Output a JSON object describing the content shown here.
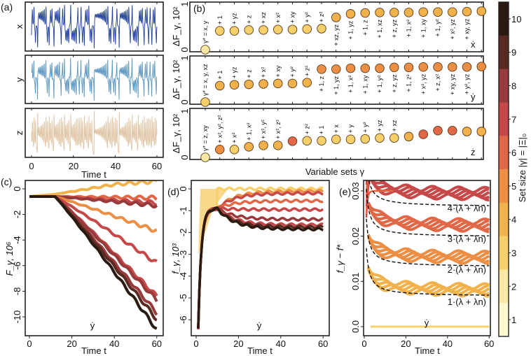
{
  "colors": {
    "set_size": {
      "1": "#fefbd0",
      "2": "#fbe8a2",
      "3": "#f8d06b",
      "4": "#f2b24b",
      "5": "#ec8f44",
      "6": "#e06846",
      "7": "#c64849",
      "8": "#973a3b",
      "9": "#5a2a22",
      "10": "#2a1a10"
    },
    "x_series": "#1f3f99",
    "y_series": "#5a95c0",
    "z_series": "#e0c5a5",
    "dashed": "#111111"
  },
  "chart_data": [
    {
      "panel": "(a)",
      "type": "line",
      "series": [
        {
          "name": "x"
        },
        {
          "name": "y"
        },
        {
          "name": "z"
        }
      ],
      "xlabel": "Time t",
      "xticks": [
        "0",
        "20",
        "40",
        "60"
      ],
      "xlim": [
        0,
        60
      ]
    },
    {
      "panel": "(b)",
      "type": "scatter",
      "xlabel": "Variable sets γ",
      "ylabel": "ΔF_γ, 10²",
      "yticks": [
        "0",
        "1"
      ],
      "ylim": [
        0,
        1
      ],
      "rows": [
        {
          "name": "ẋ",
          "labels": [
            "γ* = x, y",
            "+ 1",
            "+ yz",
            "+ z",
            "+ xz",
            "+ x²",
            "+ xy",
            "+ y²",
            "+ z²",
            "+ xz, yz",
            "+ 1, yz",
            "+ 1, z",
            "+ 1, xz",
            "+ z, yz",
            "+ 1, x²",
            "+ 1, xy",
            "+ 1, y²",
            "+ x², yz",
            "+ xy, yz",
            ""
          ],
          "values": [
            0,
            0.42,
            0.42,
            0.44,
            0.44,
            0.45,
            0.45,
            0.46,
            0.47,
            0.72,
            0.8,
            0.82,
            0.83,
            0.83,
            0.83,
            0.84,
            0.84,
            0.84,
            0.85,
            0.86
          ],
          "set_sizes": [
            2,
            3,
            3,
            3,
            3,
            3,
            3,
            3,
            3,
            4,
            4,
            4,
            4,
            4,
            4,
            4,
            4,
            4,
            4,
            4
          ]
        },
        {
          "name": "ẏ",
          "labels": [
            "γ* = x, y, xz",
            "+ 1",
            "+ yz",
            "+ z",
            "+ x²",
            "+ xy",
            "+ y²",
            "+ z²",
            "+ 1, z",
            "+ 1, yz",
            "+ 1, x²",
            "+ 1, xy",
            "+ 1, y²",
            "+ z, yz",
            "+ 1, z²",
            "+ x², yz",
            "+ z, x²",
            "+ xy, yz",
            "+ y², yz",
            ""
          ],
          "values": [
            0,
            0.38,
            0.4,
            0.41,
            0.42,
            0.43,
            0.43,
            0.45,
            0.76,
            0.76,
            0.78,
            0.78,
            0.78,
            0.8,
            0.8,
            0.81,
            0.81,
            0.81,
            0.81,
            0.82
          ],
          "set_sizes": [
            3,
            4,
            4,
            4,
            4,
            4,
            4,
            4,
            5,
            5,
            5,
            5,
            5,
            5,
            5,
            5,
            5,
            5,
            5,
            5
          ]
        },
        {
          "name": "ż",
          "labels": [
            "γ* = z, xy",
            "+ x², y², z²",
            "+ x²",
            "+ 1, x²",
            "+ x², y²",
            "+ x², z²",
            "",
            "+ z²",
            "+ 1",
            "+ x",
            "+ y",
            "+ y²",
            "+ yz",
            "+ xz",
            "",
            "",
            "",
            "",
            "",
            ""
          ],
          "values": [
            0,
            0.17,
            0.17,
            0.23,
            0.26,
            0.26,
            0.35,
            0.36,
            0.36,
            0.39,
            0.39,
            0.4,
            0.42,
            0.42,
            0.45,
            0.5,
            0.58,
            0.58,
            0.56,
            0.56
          ],
          "set_sizes": [
            2,
            5,
            3,
            4,
            4,
            4,
            6,
            3,
            3,
            3,
            3,
            3,
            3,
            3,
            4,
            6,
            6,
            6,
            4,
            4
          ]
        }
      ]
    },
    {
      "panel": "(c)",
      "type": "line",
      "annotation": "ẏ",
      "xlabel": "Time t",
      "ylabel": "F_γ, 10⁶",
      "xticks": [
        "0",
        "20",
        "40",
        "60"
      ],
      "yticks": [
        "0",
        "-2",
        "-4",
        "-6",
        "-8",
        "-10"
      ],
      "xlim": [
        0,
        60
      ],
      "ylim": [
        -11.3,
        0.4
      ],
      "final_values": [
        0,
        -0.7,
        -1.1,
        -1.3,
        -3.3,
        -5.8,
        -8.4,
        -8.7,
        -9.7,
        -10.2,
        -11.0
      ],
      "set_sizes": [
        4,
        6,
        7,
        8,
        5,
        7,
        7,
        8,
        8,
        9,
        10
      ]
    },
    {
      "panel": "(d)",
      "type": "line",
      "annotation": "ẏ",
      "xlabel": "Time t",
      "ylabel": "f_γ, 10³",
      "xticks": [
        "0",
        "20",
        "40",
        "60"
      ],
      "yticks": [
        "0",
        "-1",
        "-2",
        "-3",
        "-4",
        "-5",
        "-6"
      ],
      "xlim": [
        0,
        60
      ],
      "ylim": [
        -6.7,
        0.3
      ],
      "final_values": [
        0,
        -0.1,
        -0.2,
        -0.55,
        -0.95,
        -1.4,
        -1.65,
        -1.75,
        -1.85
      ],
      "set_sizes": [
        3,
        5,
        7,
        6,
        7,
        8,
        7,
        9,
        10
      ]
    },
    {
      "panel": "(e)",
      "type": "line",
      "annotation": "ẏ",
      "xlabel": "Time t",
      "ylabel": "f_γ − f*",
      "xticks": [
        "0",
        "20",
        "40",
        "60"
      ],
      "yticks": [
        "0.0",
        "0.01",
        "0.02",
        "0.03"
      ],
      "xlim": [
        0,
        60
      ],
      "ylim": [
        -0.002,
        0.032
      ],
      "reference_lines": [
        "1·(λ + λn)",
        "2·(λ + λn)",
        "3·(λ + λn)",
        "4·(λ + λn)"
      ],
      "reference_levels": [
        0.0067,
        0.0132,
        0.0198,
        0.0265
      ],
      "band_levels": [
        0.007,
        0.0142,
        0.0213,
        0.0283
      ],
      "band_set_sizes": [
        4,
        5,
        6,
        7
      ],
      "baseline_value": 0,
      "baseline_set_size": 3
    }
  ],
  "colorbar": {
    "label": "Set size |γ| = |Ξ|₀",
    "ticks": [
      "1",
      "2",
      "3",
      "4",
      "5",
      "6",
      "7",
      "8",
      "9",
      "10"
    ]
  }
}
